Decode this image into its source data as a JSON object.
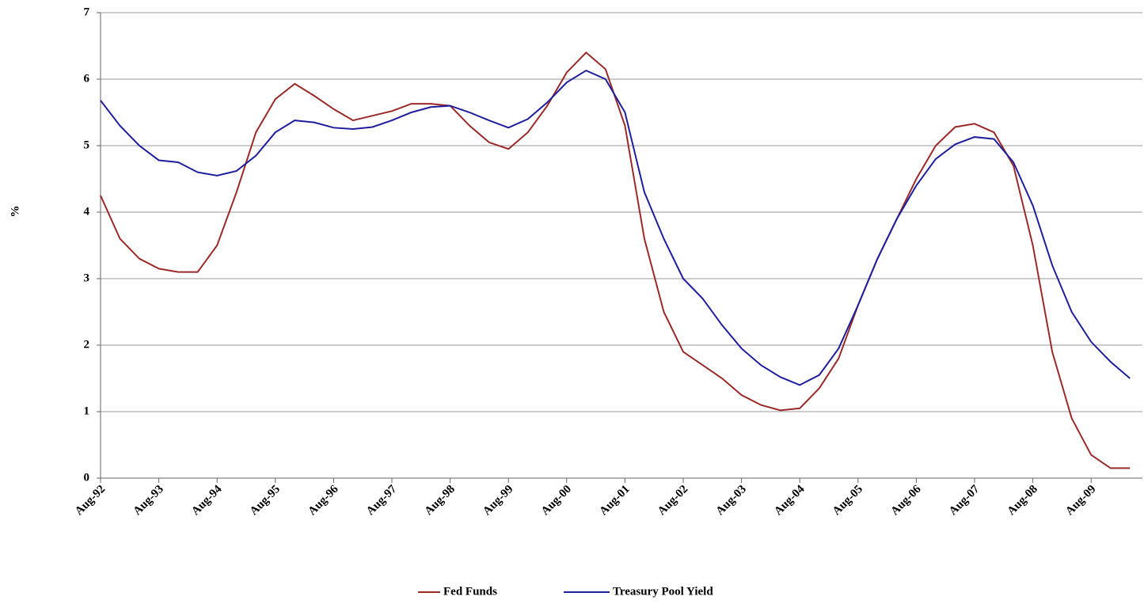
{
  "chart_data": {
    "type": "line",
    "y_label": "%",
    "categories": [
      "Aug-92",
      null,
      null,
      "Aug-93",
      null,
      null,
      "Aug-94",
      null,
      null,
      "Aug-95",
      null,
      null,
      "Aug-96",
      null,
      null,
      "Aug-97",
      null,
      null,
      "Aug-98",
      null,
      null,
      "Aug-99",
      null,
      null,
      "Aug-00",
      null,
      null,
      "Aug-01",
      null,
      null,
      "Aug-02",
      null,
      null,
      "Aug-03",
      null,
      null,
      "Aug-04",
      null,
      null,
      "Aug-05",
      null,
      null,
      "Aug-06",
      null,
      null,
      "Aug-07",
      null,
      null,
      "Aug-08",
      null,
      null,
      "Aug-09",
      null,
      null
    ],
    "series": [
      {
        "name": "Fed Funds",
        "color": "#9b2a2a",
        "values": [
          4.25,
          3.6,
          3.3,
          3.15,
          3.1,
          3.1,
          3.5,
          4.3,
          5.2,
          5.7,
          5.93,
          5.75,
          5.55,
          5.38,
          5.45,
          5.52,
          5.63,
          5.63,
          5.6,
          5.3,
          5.05,
          4.95,
          5.2,
          5.6,
          6.1,
          6.4,
          6.15,
          5.3,
          3.6,
          2.5,
          1.9,
          1.7,
          1.5,
          1.25,
          1.1,
          1.02,
          1.05,
          1.35,
          1.8,
          2.6,
          3.3,
          3.9,
          4.5,
          5.0,
          5.28,
          5.33,
          5.2,
          4.7,
          3.5,
          1.9,
          0.9,
          0.35,
          0.15,
          0.15
        ]
      },
      {
        "name": "Treasury Pool Yield",
        "color": "#1f1f9e",
        "values": [
          5.68,
          5.3,
          5.0,
          4.78,
          4.75,
          4.6,
          4.55,
          4.62,
          4.85,
          5.2,
          5.38,
          5.35,
          5.27,
          5.25,
          5.28,
          5.38,
          5.5,
          5.58,
          5.6,
          5.5,
          5.38,
          5.27,
          5.4,
          5.65,
          5.95,
          6.13,
          6.0,
          5.5,
          4.3,
          3.6,
          3.0,
          2.7,
          2.3,
          1.95,
          1.7,
          1.52,
          1.4,
          1.55,
          1.95,
          2.6,
          3.3,
          3.9,
          4.4,
          4.8,
          5.02,
          5.13,
          5.1,
          4.75,
          4.1,
          3.2,
          2.5,
          2.05,
          1.75,
          1.5
        ]
      }
    ],
    "ylim": [
      0,
      7
    ],
    "yticks": [
      0,
      1,
      2,
      3,
      4,
      5,
      6,
      7
    ],
    "grid": true,
    "legend": "bottom"
  }
}
